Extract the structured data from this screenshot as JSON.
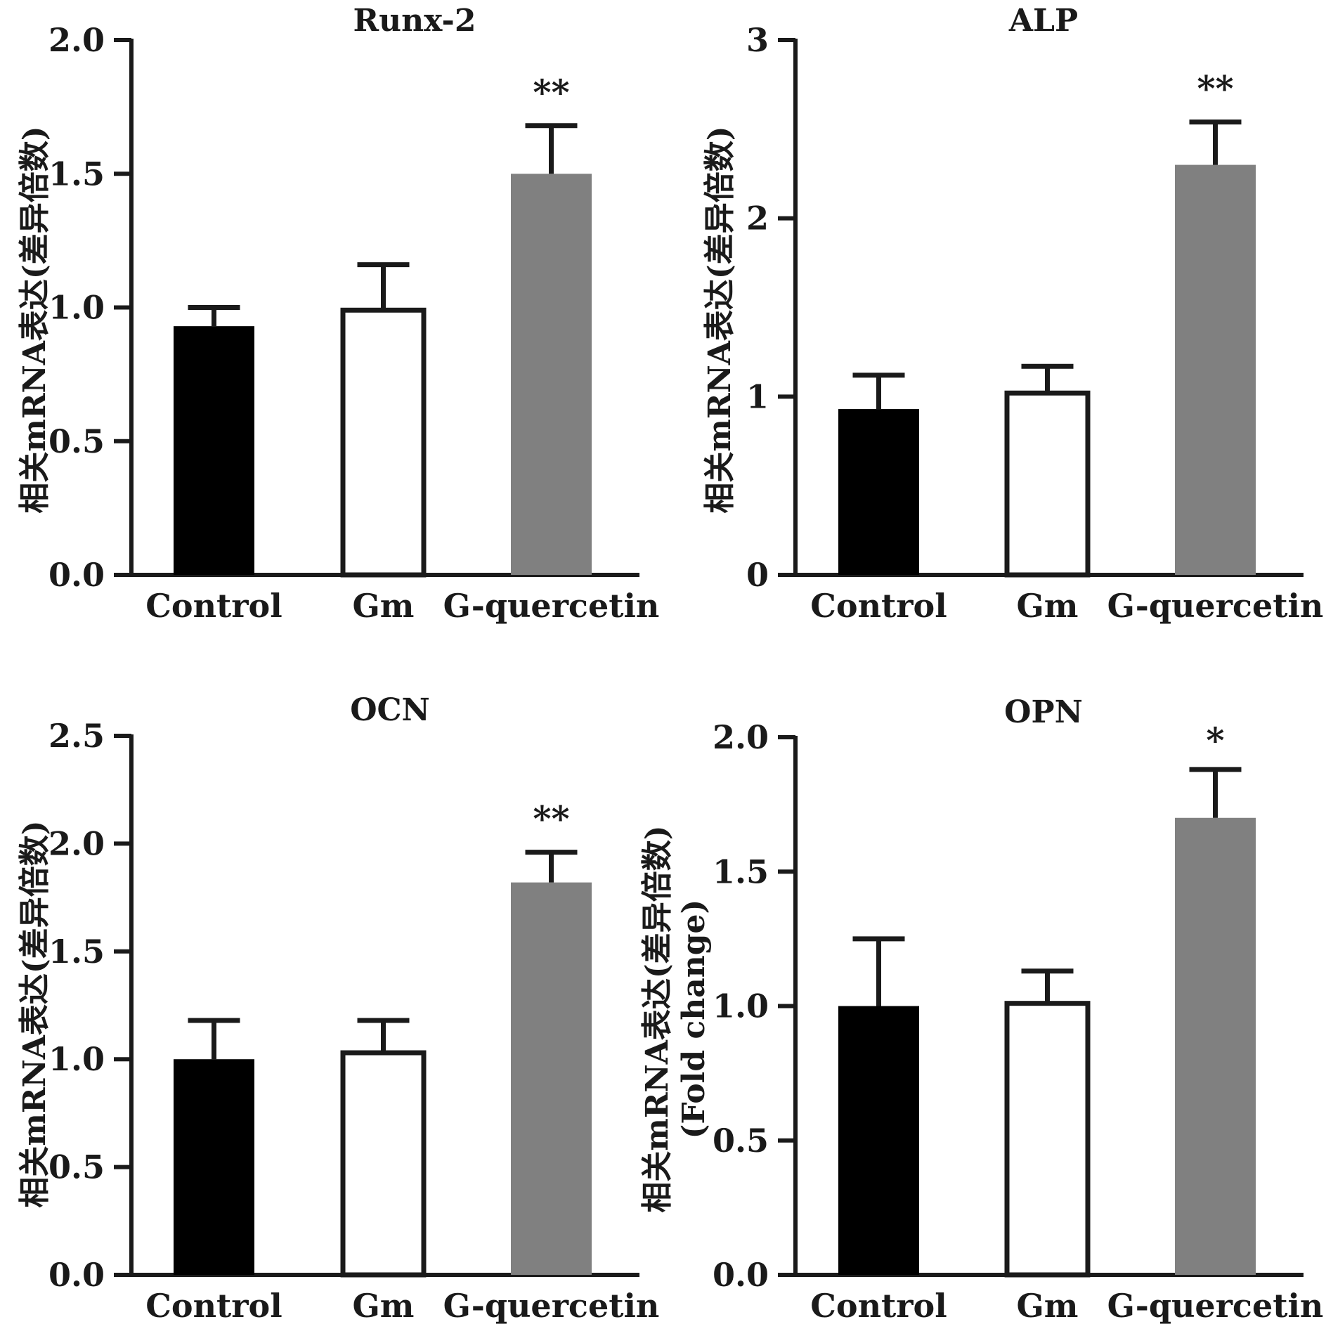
{
  "colors": {
    "axis": "#1a1a1a",
    "control": "#000000",
    "gm": "#ffffff",
    "gquercetin": "#808080",
    "error": "#1a1a1a"
  },
  "chart_data": [
    {
      "type": "bar",
      "title": "Runx-2",
      "ylabel": [
        "相关mRNA表达(差异倍数)"
      ],
      "categories": [
        "Control",
        "Gm",
        "G-quercetin"
      ],
      "values": [
        0.93,
        0.99,
        1.5
      ],
      "errors": [
        0.07,
        0.17,
        0.18
      ],
      "significance": [
        "",
        "",
        "**"
      ],
      "ylim": [
        0,
        2.0
      ],
      "yticks": [
        "0.0",
        "0.5",
        "1.0",
        "1.5",
        "2.0"
      ]
    },
    {
      "type": "bar",
      "title": "ALP",
      "ylabel": [
        "相关mRNA表达(差异倍数)"
      ],
      "categories": [
        "Control",
        "Gm",
        "G-quercetin"
      ],
      "values": [
        0.93,
        1.02,
        2.3
      ],
      "errors": [
        0.19,
        0.15,
        0.24
      ],
      "significance": [
        "",
        "",
        "**"
      ],
      "ylim": [
        0,
        3
      ],
      "yticks": [
        "0",
        "1",
        "2",
        "3"
      ]
    },
    {
      "type": "bar",
      "title": "OCN",
      "ylabel": [
        "相关mRNA表达(差异倍数)"
      ],
      "categories": [
        "Control",
        "Gm",
        "G-quercetin"
      ],
      "values": [
        1.0,
        1.03,
        1.82
      ],
      "errors": [
        0.18,
        0.15,
        0.14
      ],
      "significance": [
        "",
        "",
        "**"
      ],
      "ylim": [
        0,
        2.5
      ],
      "yticks": [
        "0.0",
        "0.5",
        "1.0",
        "1.5",
        "2.0",
        "2.5"
      ]
    },
    {
      "type": "bar",
      "title": "OPN",
      "ylabel": [
        "相关mRNA表达(差异倍数)",
        "(Fold change)"
      ],
      "categories": [
        "Control",
        "Gm",
        "G-quercetin"
      ],
      "values": [
        1.0,
        1.01,
        1.7
      ],
      "errors": [
        0.25,
        0.12,
        0.18
      ],
      "significance": [
        "",
        "",
        "*"
      ],
      "ylim": [
        0,
        2.0
      ],
      "yticks": [
        "0.0",
        "0.5",
        "1.0",
        "1.5",
        "2.0"
      ]
    }
  ]
}
